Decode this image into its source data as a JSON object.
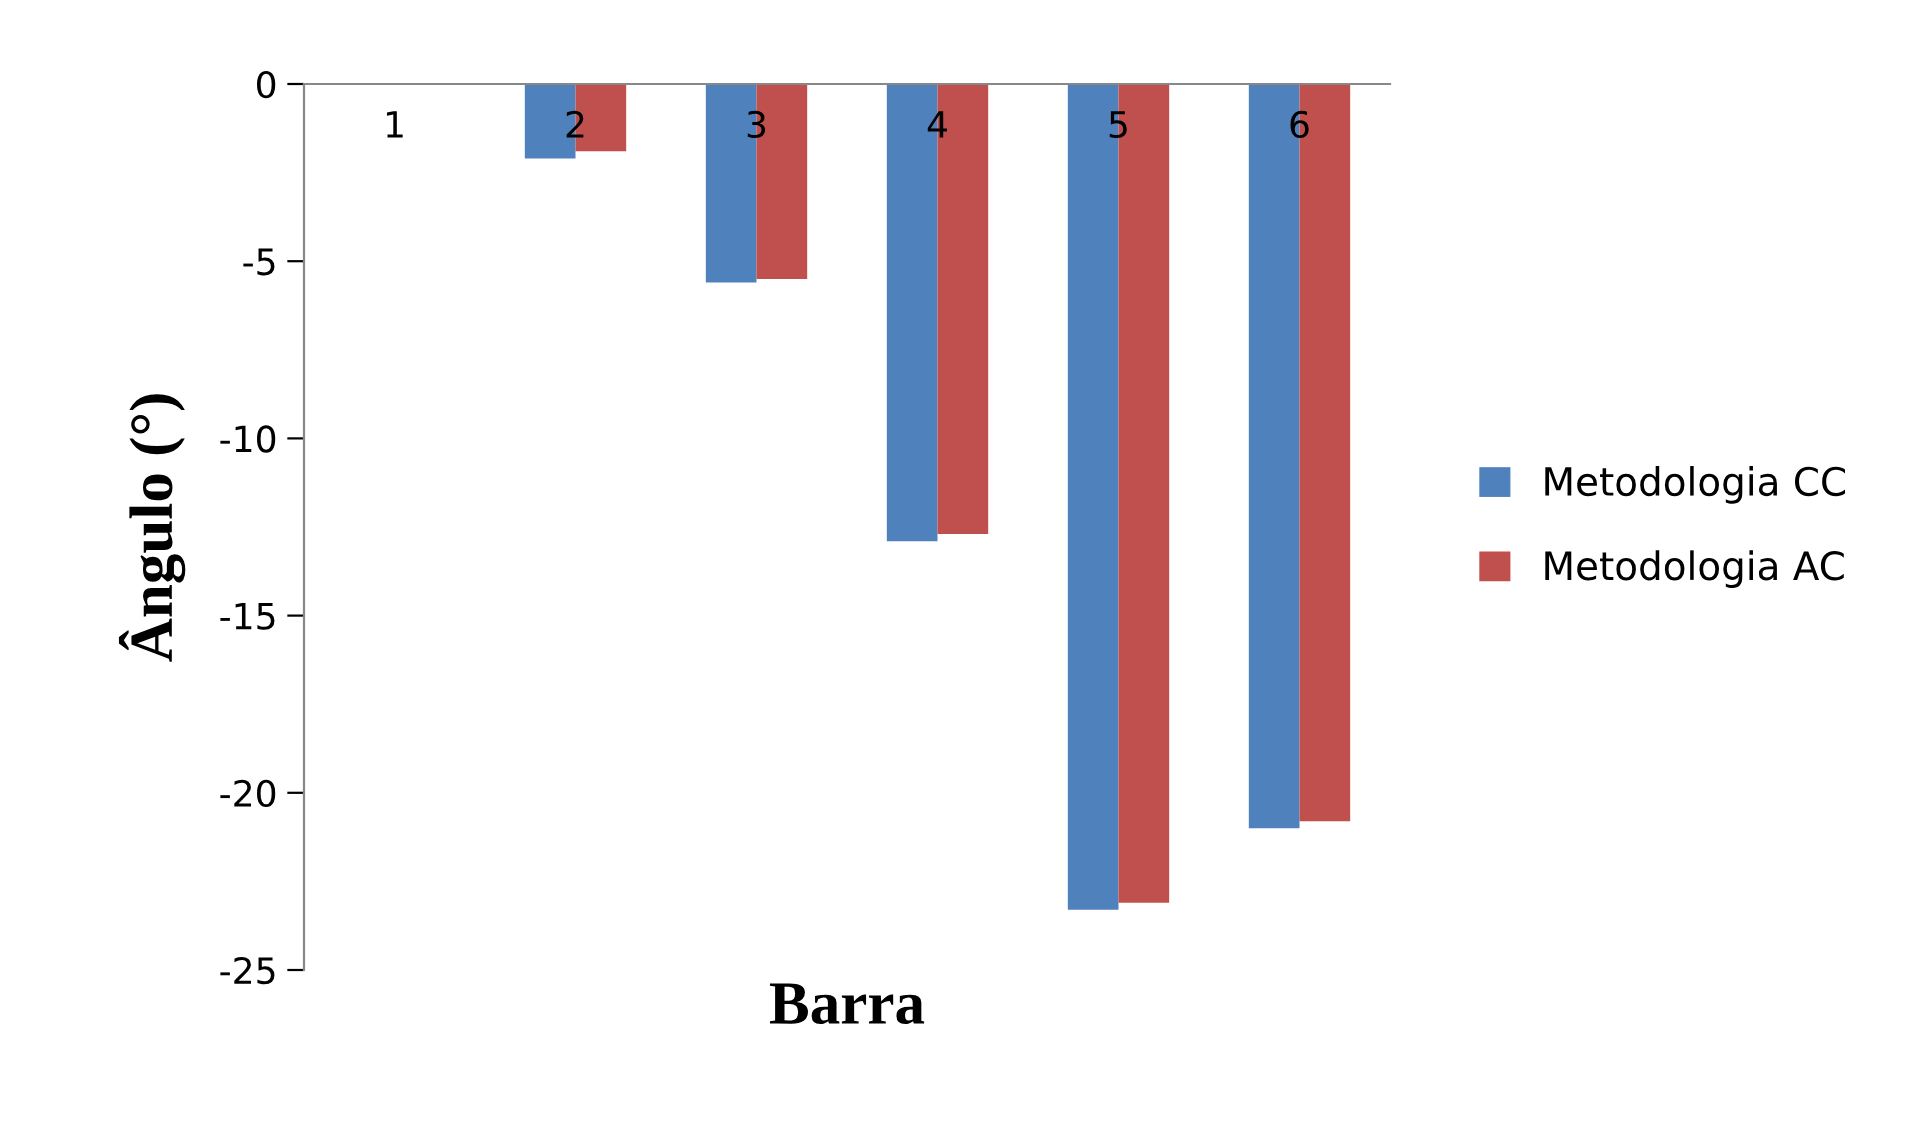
{
  "chart_data": {
    "type": "bar",
    "xlabel": "Barra",
    "ylabel": "Ângulo (°)",
    "categories": [
      "1",
      "2",
      "3",
      "4",
      "5",
      "6"
    ],
    "series": [
      {
        "name": "Metodologia CC",
        "color": "#4f81bd",
        "values": [
          0,
          -2.1,
          -5.6,
          -12.9,
          -23.3,
          -21.0
        ]
      },
      {
        "name": "Metodologia AC",
        "color": "#c0504d",
        "values": [
          0,
          -1.9,
          -5.5,
          -12.7,
          -23.1,
          -20.8
        ]
      }
    ],
    "ylim": [
      -25,
      0
    ],
    "yticks": [
      -25,
      -20,
      -15,
      -10,
      -5,
      0
    ],
    "grid": false,
    "legend": "right"
  }
}
